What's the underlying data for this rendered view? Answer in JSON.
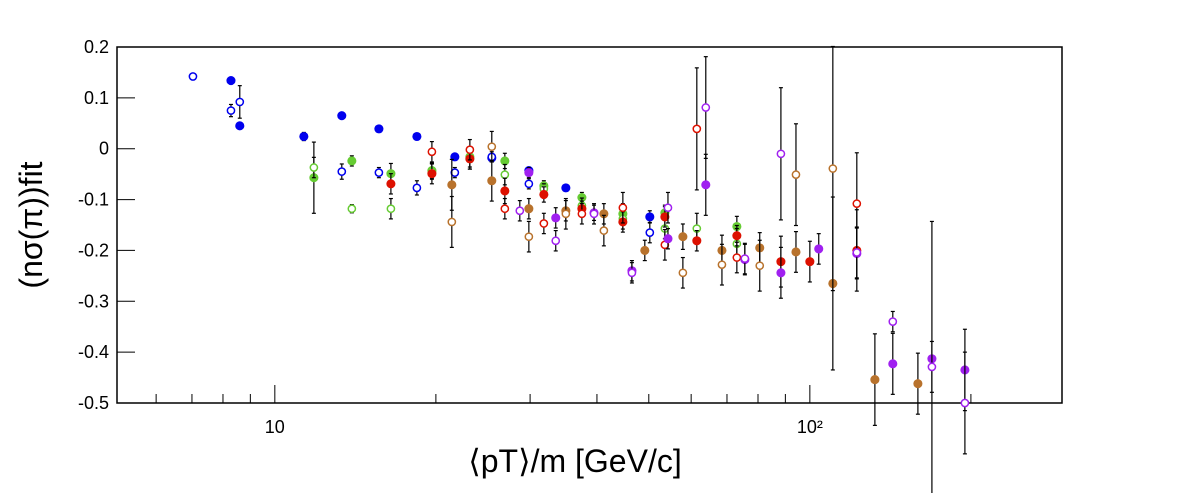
{
  "chart_data": {
    "type": "scatter",
    "xlabel": "⟨pT⟩/m [GeV/c]",
    "ylabel": "(nσ(π))fit",
    "xscale": "log",
    "xlim": [
      5.07,
      296
    ],
    "ylim": [
      -0.5,
      0.2
    ],
    "xticks": [
      10,
      {
        "value": 100,
        "label": "10²"
      }
    ],
    "xminorticks": [
      6,
      7,
      8,
      9,
      20,
      30,
      40,
      50,
      60,
      70,
      80,
      90,
      200
    ],
    "yticks": [
      0.2,
      0.1,
      0,
      -0.1,
      -0.2,
      -0.3,
      -0.4,
      -0.5
    ],
    "series": [
      {
        "color": "#0000ee",
        "marker": "filled",
        "x": [
          8.28,
          8.6,
          11.33,
          13.34,
          15.65,
          18.43,
          21.7,
          25.44,
          29.84,
          34.99,
          50.22
        ],
        "values": [
          0.134,
          0.045,
          0.024,
          0.065,
          0.039,
          0.024,
          -0.016,
          -0.018,
          -0.043,
          -0.077,
          -0.134
        ],
        "errors": [
          0.004,
          0.004,
          0.008,
          0.004,
          0.004,
          0.004,
          0.006,
          0.006,
          0.006,
          0.006,
          0.012
        ]
      },
      {
        "color": "#0000ee",
        "marker": "open",
        "x": [
          7.03,
          8.28,
          8.6,
          13.34,
          15.65,
          18.43,
          21.7,
          25.44,
          29.84,
          50.22
        ],
        "values": [
          0.142,
          0.075,
          0.092,
          -0.045,
          -0.047,
          -0.077,
          -0.047,
          -0.016,
          -0.069,
          -0.165
        ],
        "errors": [
          0.005,
          0.012,
          0.032,
          0.015,
          0.01,
          0.014,
          0.01,
          0.01,
          0.01,
          0.02
        ]
      },
      {
        "color": "#66cc33",
        "marker": "filled",
        "x": [
          11.83,
          13.93,
          16.48,
          19.66,
          23.15,
          26.91,
          31.83,
          37.49,
          44.72,
          53.58,
          73.04
        ],
        "values": [
          -0.057,
          -0.024,
          -0.049,
          -0.043,
          -0.016,
          -0.024,
          -0.073,
          -0.096,
          -0.128,
          -0.126,
          -0.153
        ],
        "errors": [
          0.07,
          0.01,
          0.02,
          0.015,
          0.02,
          0.015,
          0.01,
          0.01,
          0.02,
          0.015,
          0.02
        ]
      },
      {
        "color": "#66cc33",
        "marker": "open",
        "x": [
          11.83,
          13.93,
          16.48,
          19.66,
          23.15,
          26.91,
          31.83,
          37.49,
          44.72,
          53.58,
          61.48,
          73.04
        ],
        "values": [
          -0.037,
          -0.118,
          -0.118,
          -0.045,
          -0.02,
          -0.051,
          -0.079,
          -0.112,
          -0.138,
          -0.157,
          -0.157,
          -0.187
        ],
        "errors": [
          0.02,
          0.008,
          0.02,
          0.015,
          0.02,
          0.02,
          0.01,
          0.015,
          0.02,
          0.02,
          0.03,
          0.03
        ]
      },
      {
        "color": "#dd1100",
        "marker": "filled",
        "x": [
          16.48,
          19.66,
          23.15,
          26.91,
          31.83,
          37.49,
          44.72,
          53.58,
          61.48,
          73.04,
          88.29,
          100,
          122.4
        ],
        "values": [
          -0.069,
          -0.049,
          -0.02,
          -0.083,
          -0.09,
          -0.118,
          -0.144,
          -0.134,
          -0.181,
          -0.171,
          -0.222,
          -0.222,
          -0.2
        ],
        "errors": [
          0.02,
          0.02,
          0.02,
          0.025,
          0.015,
          0.015,
          0.02,
          0.02,
          0.02,
          0.02,
          0.05,
          0.04,
          0.08
        ]
      },
      {
        "color": "#dd1100",
        "marker": "open",
        "x": [
          19.66,
          23.15,
          26.91,
          31.83,
          37.49,
          44.72,
          53.58,
          61.48,
          73.04,
          122.4
        ],
        "values": [
          -0.006,
          -0.002,
          -0.118,
          -0.147,
          -0.128,
          -0.116,
          -0.189,
          0.039,
          -0.214,
          -0.108
        ],
        "errors": [
          0.02,
          0.02,
          0.02,
          0.02,
          0.02,
          0.03,
          0.03,
          0.12,
          0.03,
          0.1
        ]
      },
      {
        "color": "#b8722c",
        "marker": "filled",
        "x": [
          21.42,
          25.44,
          29.84,
          34.99,
          41.21,
          49.15,
          57.9,
          68.5,
          80.6,
          94.2,
          110.4,
          132.3,
          159.2
        ],
        "values": [
          -0.071,
          -0.063,
          -0.118,
          -0.122,
          -0.128,
          -0.2,
          -0.173,
          -0.2,
          -0.195,
          -0.203,
          -0.265,
          -0.454,
          -0.462
        ],
        "errors": [
          0.05,
          0.04,
          0.02,
          0.02,
          0.02,
          0.02,
          0.025,
          0.03,
          0.03,
          0.04,
          0.17,
          0.09,
          0.06
        ]
      },
      {
        "color": "#b8722c",
        "marker": "open",
        "x": [
          21.42,
          25.44,
          29.84,
          34.99,
          41.21,
          57.9,
          68.5,
          80.6,
          94.2,
          110.4
        ],
        "values": [
          -0.144,
          0.004,
          -0.173,
          -0.128,
          -0.161,
          -0.244,
          -0.228,
          -0.23,
          -0.051,
          -0.039
        ],
        "errors": [
          0.05,
          0.03,
          0.03,
          0.03,
          0.03,
          0.03,
          0.04,
          0.05,
          0.1,
          0.24
        ]
      },
      {
        "color": "#a020f0",
        "marker": "filled",
        "x": [
          29.84,
          33.5,
          39.5,
          46.5,
          54.3,
          63.9,
          75.6,
          88.29,
          103.9,
          122.4,
          142.9,
          169.1,
          194.9
        ],
        "values": [
          -0.047,
          -0.136,
          -0.126,
          -0.24,
          -0.177,
          -0.071,
          -0.218,
          -0.244,
          -0.197,
          -0.206,
          -0.423,
          -0.413,
          -0.435
        ],
        "errors": [
          0.01,
          0.02,
          0.015,
          0.02,
          0.02,
          0.06,
          0.03,
          0.05,
          0.03,
          0.05,
          0.06,
          0.27,
          0.08
        ]
      },
      {
        "color": "#a020f0",
        "marker": "open",
        "x": [
          28.7,
          33.5,
          39.5,
          46.5,
          54.3,
          63.9,
          75.6,
          88.29,
          122.4,
          142.9,
          169.1,
          194.9
        ],
        "values": [
          -0.122,
          -0.181,
          -0.128,
          -0.244,
          -0.116,
          0.081,
          -0.216,
          -0.01,
          -0.204,
          -0.34,
          -0.429,
          -0.5
        ],
        "errors": [
          0.02,
          0.02,
          0.02,
          0.02,
          0.03,
          0.1,
          0.03,
          0.13,
          0.05,
          0.02,
          0.05,
          0.1
        ]
      }
    ]
  }
}
